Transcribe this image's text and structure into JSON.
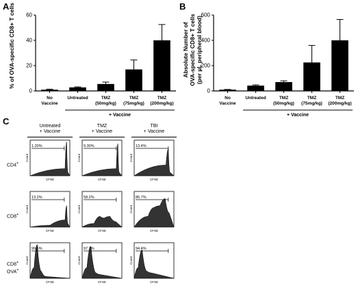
{
  "panels": {
    "a": "A",
    "b": "B",
    "c": "C"
  },
  "chart_data": [
    {
      "type": "bar",
      "ylabel": "% of OVA-specific CD8+ T cells",
      "ylim": [
        0,
        60
      ],
      "yticks": [
        "0",
        "20",
        "40",
        "60"
      ],
      "categories": [
        [
          "No",
          "Vaccine"
        ],
        [
          "Untreated"
        ],
        [
          "TMZ",
          "(50mg/kg)"
        ],
        [
          "TMZ",
          "(75mg/kg)"
        ],
        [
          "TMZ",
          "(200mg/kg)"
        ]
      ],
      "values": [
        1,
        2.8,
        5.5,
        17,
        40
      ],
      "errors": [
        0.4,
        0.4,
        1.5,
        7.5,
        12.5
      ],
      "group_label": "+ Vaccine"
    },
    {
      "type": "bar",
      "ylabel": "Absolute Number of OVA-specific CD8+ T cells (per µL peripheral blood)",
      "ylabel_lines": [
        "Absolute Number of",
        "OVA-specific CD8+ T cells",
        "(per µL peripheral blood)"
      ],
      "ylim": [
        0,
        600
      ],
      "yticks": [
        "0",
        "200",
        "400",
        "600"
      ],
      "categories": [
        [
          "No",
          "Vaccine"
        ],
        [
          "Untreated"
        ],
        [
          "TMZ",
          "(50mg/kg)"
        ],
        [
          "TMZ",
          "(75mg/kg)"
        ],
        [
          "TMZ",
          "(200mg/kg)"
        ]
      ],
      "values": [
        10,
        42,
        70,
        225,
        400
      ],
      "errors": [
        2,
        6,
        10,
        135,
        165
      ],
      "group_label": "+ Vaccine"
    }
  ],
  "histograms": {
    "columns": [
      [
        "Untreated",
        "+ Vaccine"
      ],
      [
        "TMZ",
        "+ Vaccine"
      ],
      [
        "TBI",
        "+ Vaccine"
      ]
    ],
    "rows": [
      [
        "CD4",
        "+"
      ],
      [
        "CD8",
        "+"
      ],
      [
        "CD8",
        "+"
      ]
    ],
    "row3_line2": [
      "OVA",
      "+"
    ],
    "x_axis_label": "CFSE",
    "y_axis_label": "Count",
    "gates": [
      [
        "1.20%",
        "9.30%",
        "13.4%"
      ],
      [
        "13.2%",
        "58.2%",
        "86.7%"
      ],
      [
        "99.6%",
        "97.2%",
        "94.4%"
      ]
    ]
  }
}
